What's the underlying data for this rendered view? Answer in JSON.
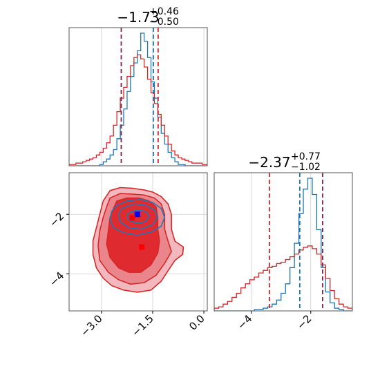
{
  "colors": {
    "blue": "#1f77b4",
    "red": "#d62728",
    "pink_fill_light": "#f3b8bd",
    "pink_fill_mid": "#eb858c",
    "red_fill_dark": "#df2a30",
    "grid": "#cfcfcf",
    "blue_marker": "#0000ff",
    "red_marker": "#ff0000",
    "purple_overlap": "#7b2f5a"
  },
  "chart_data": {
    "type": "corner",
    "titles": [
      {
        "parameter": 0,
        "median": "−1.73",
        "plus": "+0.46",
        "minus": "−0.50"
      },
      {
        "parameter": 1,
        "median": "−2.37",
        "plus": "+0.77",
        "minus": "−1.02"
      }
    ],
    "axes": {
      "param0": {
        "range": [
          -3.95,
          0.1
        ],
        "ticks": [
          -3.0,
          -1.5,
          0.0
        ],
        "tick_labels": [
          "−3.0",
          "−1.5",
          "0.0"
        ]
      },
      "param1": {
        "range": [
          -5.25,
          -0.6
        ],
        "ticks": [
          -4,
          -2
        ],
        "tick_labels": [
          "−4",
          "−2"
        ]
      }
    },
    "grid": true,
    "hist_param0": {
      "bin_edges": [
        -3.95,
        -3.85,
        -3.75,
        -3.65,
        -3.55,
        -3.45,
        -3.35,
        -3.25,
        -3.15,
        -3.05,
        -2.95,
        -2.85,
        -2.75,
        -2.65,
        -2.55,
        -2.45,
        -2.35,
        -2.25,
        -2.15,
        -2.05,
        -1.95,
        -1.85,
        -1.75,
        -1.65,
        -1.55,
        -1.45,
        -1.35,
        -1.25,
        -1.15,
        -1.05,
        -0.95,
        -0.85,
        -0.75,
        -0.65,
        -0.55,
        -0.45,
        -0.35,
        -0.25,
        -0.15,
        -0.05,
        0.05,
        0.1
      ],
      "series": [
        {
          "color": "blue",
          "values": [
            0,
            0,
            0,
            0,
            0,
            0,
            0,
            0,
            0,
            0.01,
            0.03,
            0.05,
            0.08,
            0.12,
            0.2,
            0.3,
            0.42,
            0.55,
            0.66,
            0.76,
            0.85,
            0.98,
            0.92,
            0.8,
            0.62,
            0.5,
            0.36,
            0.24,
            0.16,
            0.1,
            0.06,
            0.03,
            0.01,
            0.01,
            0,
            0,
            0,
            0,
            0,
            0,
            0
          ]
        },
        {
          "color": "red",
          "values": [
            0.01,
            0.01,
            0.02,
            0.02,
            0.03,
            0.04,
            0.05,
            0.06,
            0.08,
            0.1,
            0.13,
            0.17,
            0.22,
            0.3,
            0.4,
            0.5,
            0.58,
            0.66,
            0.74,
            0.8,
            0.82,
            0.79,
            0.73,
            0.64,
            0.54,
            0.46,
            0.38,
            0.3,
            0.22,
            0.16,
            0.11,
            0.08,
            0.06,
            0.05,
            0.04,
            0.03,
            0.02,
            0.02,
            0.02,
            0.01,
            0.01
          ]
        }
      ],
      "quantile_lines": [
        {
          "color": "red",
          "values": [
            -2.42,
            -1.34
          ]
        },
        {
          "color": "purple_overlap",
          "values": [
            -2.42
          ]
        },
        {
          "color": "blue",
          "values": [
            -1.48
          ]
        }
      ]
    },
    "hist_param1": {
      "bin_edges": [
        -5.25,
        -5.1,
        -4.95,
        -4.8,
        -4.65,
        -4.5,
        -4.35,
        -4.2,
        -4.05,
        -3.9,
        -3.75,
        -3.6,
        -3.45,
        -3.3,
        -3.15,
        -3.0,
        -2.85,
        -2.7,
        -2.55,
        -2.4,
        -2.25,
        -2.1,
        -1.95,
        -1.8,
        -1.65,
        -1.5,
        -1.35,
        -1.2,
        -1.05,
        -0.9,
        -0.75,
        -0.6
      ],
      "series": [
        {
          "color": "blue",
          "values": [
            0,
            0,
            0,
            0,
            0,
            0,
            0,
            0,
            0,
            0.01,
            0.01,
            0.02,
            0.03,
            0.05,
            0.08,
            0.13,
            0.2,
            0.32,
            0.5,
            0.72,
            0.9,
            0.98,
            0.86,
            0.6,
            0.32,
            0.14,
            0.06,
            0.02,
            0.01,
            0,
            0
          ]
        },
        {
          "color": "red",
          "values": [
            0.02,
            0.03,
            0.05,
            0.07,
            0.1,
            0.13,
            0.17,
            0.2,
            0.23,
            0.25,
            0.28,
            0.3,
            0.32,
            0.33,
            0.35,
            0.36,
            0.38,
            0.4,
            0.42,
            0.45,
            0.47,
            0.48,
            0.46,
            0.42,
            0.34,
            0.24,
            0.15,
            0.09,
            0.05,
            0.03,
            0.02
          ]
        }
      ],
      "quantile_lines": [
        {
          "color": "red",
          "values": [
            -3.39,
            -1.6
          ]
        },
        {
          "color": "blue",
          "values": [
            -2.37
          ]
        },
        {
          "color": "purple_overlap",
          "values": [
            -1.6
          ]
        }
      ]
    },
    "contours_2d": [
      {
        "color": "red",
        "fill": "pink_fill_light",
        "points": [
          [
            -2.95,
            -1.55
          ],
          [
            -2.75,
            -1.2
          ],
          [
            -2.45,
            -1.1
          ],
          [
            -2.1,
            -1.12
          ],
          [
            -1.75,
            -1.18
          ],
          [
            -1.5,
            -1.25
          ],
          [
            -1.25,
            -1.4
          ],
          [
            -1.05,
            -1.65
          ],
          [
            -0.95,
            -2.0
          ],
          [
            -0.95,
            -2.5
          ],
          [
            -0.85,
            -2.9
          ],
          [
            -0.6,
            -3.1
          ],
          [
            -0.62,
            -3.35
          ],
          [
            -0.85,
            -3.55
          ],
          [
            -1.05,
            -3.9
          ],
          [
            -1.25,
            -4.25
          ],
          [
            -1.55,
            -4.55
          ],
          [
            -1.95,
            -4.62
          ],
          [
            -2.35,
            -4.55
          ],
          [
            -2.7,
            -4.4
          ],
          [
            -2.95,
            -4.15
          ],
          [
            -3.15,
            -3.8
          ],
          [
            -3.25,
            -3.35
          ],
          [
            -3.25,
            -2.9
          ],
          [
            -3.15,
            -2.45
          ],
          [
            -3.05,
            -2.0
          ]
        ]
      },
      {
        "color": "red",
        "fill": "pink_fill_mid",
        "points": [
          [
            -2.75,
            -1.45
          ],
          [
            -2.45,
            -1.3
          ],
          [
            -2.1,
            -1.32
          ],
          [
            -1.75,
            -1.35
          ],
          [
            -1.45,
            -1.45
          ],
          [
            -1.25,
            -1.65
          ],
          [
            -1.15,
            -2.0
          ],
          [
            -1.15,
            -2.5
          ],
          [
            -1.05,
            -2.9
          ],
          [
            -0.95,
            -3.25
          ],
          [
            -1.15,
            -3.65
          ],
          [
            -1.4,
            -4.05
          ],
          [
            -1.75,
            -4.3
          ],
          [
            -2.15,
            -4.35
          ],
          [
            -2.5,
            -4.2
          ],
          [
            -2.8,
            -3.95
          ],
          [
            -3.05,
            -3.55
          ],
          [
            -3.1,
            -3.05
          ],
          [
            -3.05,
            -2.55
          ],
          [
            -2.95,
            -2.1
          ],
          [
            -2.85,
            -1.75
          ]
        ]
      },
      {
        "color": "red",
        "fill": "red_fill_dark",
        "points": [
          [
            -2.55,
            -1.55
          ],
          [
            -2.25,
            -1.45
          ],
          [
            -1.9,
            -1.45
          ],
          [
            -1.6,
            -1.55
          ],
          [
            -1.4,
            -1.75
          ],
          [
            -1.35,
            -2.1
          ],
          [
            -1.35,
            -2.5
          ],
          [
            -1.3,
            -2.9
          ],
          [
            -1.35,
            -3.3
          ],
          [
            -1.55,
            -3.7
          ],
          [
            -1.85,
            -3.95
          ],
          [
            -2.2,
            -3.95
          ],
          [
            -2.5,
            -3.8
          ],
          [
            -2.75,
            -3.45
          ],
          [
            -2.85,
            -3.0
          ],
          [
            -2.8,
            -2.55
          ],
          [
            -2.75,
            -2.1
          ],
          [
            -2.65,
            -1.8
          ]
        ]
      },
      {
        "color": "blue",
        "fill": "none",
        "points": [
          [
            -2.55,
            -1.7
          ],
          [
            -2.25,
            -1.55
          ],
          [
            -1.85,
            -1.5
          ],
          [
            -1.5,
            -1.6
          ],
          [
            -1.25,
            -1.8
          ],
          [
            -1.15,
            -2.1
          ],
          [
            -1.25,
            -2.4
          ],
          [
            -1.55,
            -2.6
          ],
          [
            -1.95,
            -2.7
          ],
          [
            -2.35,
            -2.62
          ],
          [
            -2.65,
            -2.45
          ],
          [
            -2.75,
            -2.15
          ],
          [
            -2.7,
            -1.9
          ]
        ]
      },
      {
        "color": "blue",
        "fill": "none",
        "points": [
          [
            -2.4,
            -1.8
          ],
          [
            -2.05,
            -1.65
          ],
          [
            -1.7,
            -1.7
          ],
          [
            -1.45,
            -1.85
          ],
          [
            -1.35,
            -2.1
          ],
          [
            -1.5,
            -2.35
          ],
          [
            -1.85,
            -2.5
          ],
          [
            -2.2,
            -2.45
          ],
          [
            -2.45,
            -2.25
          ],
          [
            -2.5,
            -2.0
          ]
        ]
      },
      {
        "color": "blue",
        "fill": "none",
        "points": [
          [
            -2.2,
            -1.95
          ],
          [
            -1.95,
            -1.85
          ],
          [
            -1.7,
            -1.9
          ],
          [
            -1.6,
            -2.05
          ],
          [
            -1.7,
            -2.25
          ],
          [
            -1.95,
            -2.3
          ],
          [
            -2.2,
            -2.2
          ],
          [
            -2.25,
            -2.05
          ]
        ]
      }
    ],
    "markers": [
      {
        "color": "blue_marker",
        "x": -1.95,
        "y": -2.0
      },
      {
        "color": "red_marker",
        "x": -2.1,
        "y": -2.12
      },
      {
        "color": "red_marker",
        "x": -1.82,
        "y": -3.1
      }
    ]
  }
}
